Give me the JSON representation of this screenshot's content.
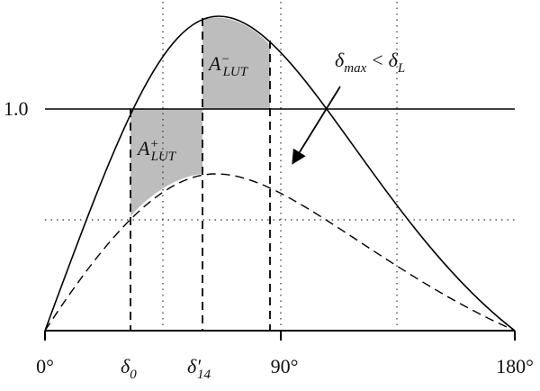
{
  "y_label": "1.0",
  "x_labels": {
    "zero": "0°",
    "ninety": "90°",
    "one_eighty": "180°"
  },
  "delta_0": {
    "base": "δ",
    "sub": "0"
  },
  "delta_14": {
    "base": "δ′",
    "sub": "14"
  },
  "area_minus": {
    "base": "A",
    "sup": "−",
    "sub": "LUT"
  },
  "area_plus": {
    "base": "A",
    "sup": "+",
    "sub": "LUT"
  },
  "annotation": {
    "left": "δ",
    "left_sub": "max",
    "relation": "<",
    "right": "δ",
    "right_sub": "L"
  }
}
